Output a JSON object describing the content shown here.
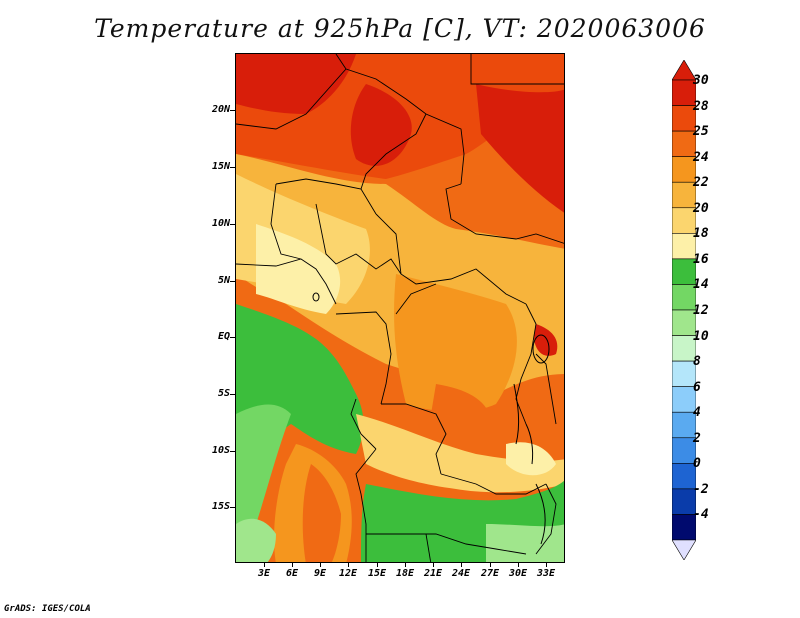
{
  "title": "Temperature at 925hPa [C], VT: 2020063006",
  "credit": "GrADS: IGES/COLA",
  "lat_labels": [
    "20N",
    "15N",
    "10N",
    "5N",
    "EQ",
    "5S",
    "10S",
    "15S"
  ],
  "lon_labels": [
    "3E",
    "6E",
    "9E",
    "12E",
    "15E",
    "18E",
    "21E",
    "24E",
    "27E",
    "30E",
    "33E"
  ],
  "colorbar": {
    "labels": [
      "30",
      "28",
      "25",
      "24",
      "22",
      "20",
      "18",
      "16",
      "14",
      "12",
      "10",
      "8",
      "6",
      "4",
      "2",
      "0",
      "-2",
      "-4"
    ],
    "colors": [
      "#d81e0a",
      "#eb4a0c",
      "#f06a14",
      "#f5961e",
      "#f7b43c",
      "#fbd56e",
      "#fdf0a8",
      "#3cbe3c",
      "#73d764",
      "#a0e68c",
      "#c8f5c8",
      "#b4e6fa",
      "#8ccdfa",
      "#5aaaf0",
      "#3c8ce6",
      "#1e64d2",
      "#0a3caa",
      "#000a6e"
    ],
    "top_color": "#d81e0a",
    "bottom_color": "#e0e0ff"
  }
}
